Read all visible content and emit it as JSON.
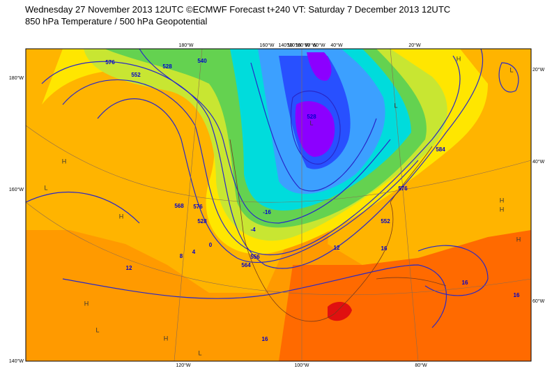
{
  "header": {
    "line1": "Wednesday 27 November 2013 12UTC ©ECMWF Forecast t+240 VT: Saturday 7 December 2013 12UTC",
    "line2": "850 hPa Temperature / 500 hPa Geopotential"
  },
  "map": {
    "lon_labels_top": [
      "180°W",
      "160°W",
      "140°W",
      "120°W",
      "100°W",
      "80°W",
      "60°W",
      "40°W",
      "20°W"
    ],
    "lon_labels_bottom": [
      "120°W",
      "100°W",
      "80°W"
    ],
    "lat_labels_left": [
      "180°W",
      "160°W",
      "140°W"
    ],
    "lat_labels_right": [
      "20°W",
      "40°W",
      "60°W"
    ],
    "contour_labels": [
      "576",
      "552",
      "528",
      "540",
      "528",
      "12",
      "8",
      "4",
      "0",
      "16",
      "16",
      "12",
      "16",
      "-4",
      "-16",
      "584",
      "576",
      "552",
      "564",
      "556",
      "568",
      "576",
      "528",
      "16"
    ],
    "pressure_centers": [
      "H",
      "L",
      "H",
      "L",
      "L",
      "H",
      "H",
      "H",
      "H",
      "L",
      "H",
      "L",
      "H",
      "L"
    ]
  }
}
